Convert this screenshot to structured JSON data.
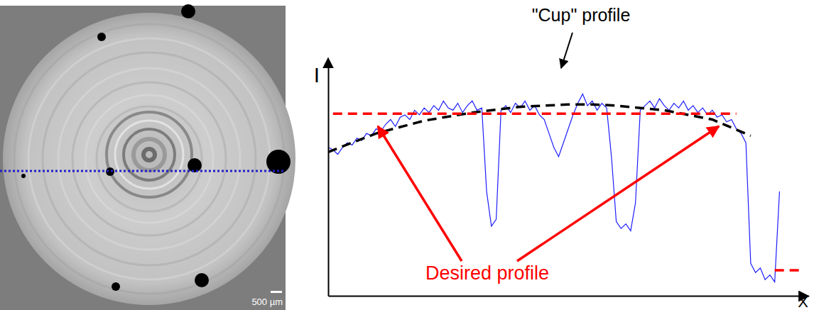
{
  "image": {
    "scale_bar": "500 µm"
  },
  "chart_data": {
    "type": "line",
    "x_label": "X",
    "y_label": "I",
    "xlim": [
      0,
      100
    ],
    "ylim": [
      0,
      100
    ],
    "tick_labels": false,
    "annotations": [
      {
        "text": "\"Cup\" profile",
        "color": "#000000"
      },
      {
        "text": "Desired profile",
        "color": "#ff0000"
      }
    ],
    "series": [
      {
        "color": "#1f1fff",
        "line_style": "solid",
        "x": [
          0,
          1,
          2,
          3,
          4,
          5,
          6,
          7,
          8,
          9,
          10,
          11,
          12,
          13,
          14,
          15,
          16,
          17,
          18,
          19,
          20,
          21,
          22,
          23,
          24,
          25,
          26,
          27,
          28,
          29,
          30,
          31,
          32,
          33,
          34,
          35,
          36,
          37,
          38,
          39,
          40,
          41,
          42,
          43,
          44,
          45,
          46,
          47,
          48,
          49,
          50,
          51,
          52,
          53,
          54,
          55,
          56,
          57,
          58,
          59,
          60,
          61,
          62,
          63,
          64,
          65,
          66,
          67,
          68,
          69,
          70,
          71,
          72,
          73,
          74,
          75,
          76,
          77,
          78,
          79,
          80,
          81,
          82,
          83,
          84,
          85,
          86,
          87,
          88,
          89,
          90,
          91,
          92,
          93,
          94
        ],
        "values": [
          64,
          63,
          61,
          64,
          66,
          65,
          68,
          67,
          70,
          69,
          72,
          71,
          74,
          76,
          73,
          77,
          78,
          76,
          80,
          78,
          81,
          79,
          82,
          80,
          84,
          81,
          80,
          83,
          79,
          82,
          84,
          80,
          81,
          45,
          30,
          33,
          80,
          82,
          79,
          83,
          81,
          84,
          80,
          82,
          78,
          76,
          70,
          64,
          60,
          66,
          72,
          78,
          83,
          87,
          82,
          84,
          80,
          83,
          81,
          60,
          32,
          29,
          31,
          28,
          40,
          80,
          82,
          84,
          81,
          85,
          82,
          80,
          83,
          81,
          84,
          80,
          82,
          79,
          81,
          78,
          80,
          77,
          78,
          75,
          76,
          72,
          70,
          66,
          14,
          10,
          12,
          7,
          9,
          6,
          45
        ]
      },
      {
        "color": "#000000",
        "line_style": "dashed",
        "x": [
          0,
          10,
          20,
          30,
          40,
          50,
          55,
          60,
          70,
          80,
          88
        ],
        "values": [
          62,
          70,
          75.5,
          79,
          81.5,
          82.5,
          82.5,
          82,
          80,
          76,
          69
        ]
      },
      {
        "color": "#ff0000",
        "line_style": "dashed",
        "x": [
          1,
          85,
          86,
          93,
          99
        ],
        "values": [
          78.5,
          78.5,
          null,
          11,
          11
        ]
      }
    ]
  }
}
